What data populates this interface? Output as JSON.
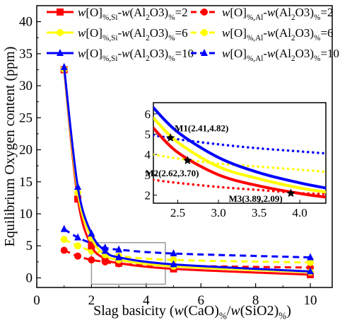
{
  "chart_data": {
    "type": "line",
    "title": "",
    "xlabel": "Slag basicity (w(CaO)%/w(SiO2)%)",
    "ylabel": "Equilibrium Oxygen content  (ppm)",
    "xlim": [
      0,
      10.8
    ],
    "ylim": [
      -1.5,
      42.5
    ],
    "x_ticks": [
      0,
      2,
      4,
      6,
      8,
      10
    ],
    "y_ticks": [
      0,
      5,
      10,
      15,
      20,
      25,
      30,
      35,
      40
    ],
    "grid": false,
    "legend_position": "top",
    "series": [
      {
        "name": "w[O]%,Si-w(Al2O3)%=2",
        "color": "#ff0000",
        "line": "solid",
        "marker": "square",
        "x": [
          1.0,
          1.5,
          2.0,
          2.5,
          3.0,
          5.0,
          10.0
        ],
        "y": [
          32.5,
          12.3,
          5.0,
          3.0,
          2.3,
          1.4,
          0.5
        ]
      },
      {
        "name": "w[O]%,Si-w(Al2O3)%=6",
        "color": "#ffff00",
        "line": "solid",
        "marker": "circle",
        "x": [
          1.0,
          1.5,
          2.0,
          2.5,
          3.0,
          5.0,
          10.0
        ],
        "y": [
          32.6,
          13.3,
          6.2,
          3.6,
          2.8,
          1.8,
          0.9
        ]
      },
      {
        "name": "w[O]%,Si-w(Al2O3)%=10",
        "color": "#0000ff",
        "line": "solid",
        "marker": "triangle",
        "x": [
          1.0,
          1.5,
          2.0,
          2.5,
          3.0,
          5.0,
          10.0
        ],
        "y": [
          32.9,
          14.2,
          6.9,
          4.2,
          3.2,
          2.1,
          1.0
        ]
      },
      {
        "name": "w[O]%,Al-w(Al2O3)%=2",
        "color": "#ff0000",
        "line": "dashed",
        "marker": "circle",
        "x": [
          1.0,
          1.5,
          2.0,
          2.5,
          3.0,
          5.0,
          10.0
        ],
        "y": [
          4.3,
          3.4,
          2.8,
          2.5,
          2.2,
          1.9,
          1.6
        ]
      },
      {
        "name": "w[O]%,Al-w(Al2O3)%=6",
        "color": "#ffff00",
        "line": "dashed",
        "marker": "circle",
        "x": [
          1.0,
          1.5,
          2.0,
          2.5,
          3.0,
          5.0,
          10.0
        ],
        "y": [
          6.0,
          5.0,
          4.2,
          3.8,
          3.4,
          2.8,
          2.4
        ]
      },
      {
        "name": "w[O]%,Al-w(Al2O3)%=10",
        "color": "#0000ff",
        "line": "dashed",
        "marker": "triangle",
        "x": [
          1.0,
          1.5,
          2.0,
          2.5,
          3.0,
          5.0,
          10.0
        ],
        "y": [
          7.6,
          6.3,
          5.4,
          4.7,
          4.4,
          3.8,
          3.2
        ]
      }
    ],
    "zoom_box": {
      "x": [
        2.0,
        4.7
      ],
      "y": [
        -1.0,
        5.5
      ]
    },
    "inset": {
      "xlim": [
        2.2,
        4.32
      ],
      "ylim": [
        1.6,
        6.55
      ],
      "x_ticks": [
        2.5,
        3.0,
        3.5,
        4.0
      ],
      "x_tick_labels": [
        "2.5",
        "3.0",
        "3.5",
        "4.0"
      ],
      "y_ticks": [
        2,
        3,
        4,
        5,
        6
      ],
      "series": [
        {
          "ref": 0,
          "color": "#ff0000",
          "line": "solid",
          "x": [
            2.2,
            2.5,
            3.0,
            3.5,
            4.0,
            4.32
          ],
          "y": [
            5.3,
            4.1,
            3.0,
            2.45,
            2.08,
            1.9
          ]
        },
        {
          "ref": 1,
          "color": "#ffff00",
          "line": "solid",
          "x": [
            2.2,
            2.5,
            3.0,
            3.5,
            4.0,
            4.32
          ],
          "y": [
            5.8,
            4.6,
            3.4,
            2.8,
            2.35,
            2.15
          ]
        },
        {
          "ref": 2,
          "color": "#0000ff",
          "line": "solid",
          "x": [
            2.2,
            2.5,
            3.0,
            3.5,
            4.0,
            4.32
          ],
          "y": [
            6.3,
            5.1,
            3.85,
            3.1,
            2.6,
            2.35
          ]
        },
        {
          "ref": 3,
          "color": "#ff0000",
          "line": "dotted",
          "x": [
            2.2,
            2.5,
            3.0,
            3.5,
            4.0,
            4.32
          ],
          "y": [
            2.75,
            2.6,
            2.4,
            2.25,
            2.1,
            2.05
          ]
        },
        {
          "ref": 4,
          "color": "#ffff00",
          "line": "dotted",
          "x": [
            2.2,
            2.5,
            3.0,
            3.5,
            4.0,
            4.32
          ],
          "y": [
            4.0,
            3.8,
            3.55,
            3.4,
            3.25,
            3.15
          ]
        },
        {
          "ref": 5,
          "color": "#0000ff",
          "line": "dotted",
          "x": [
            2.2,
            2.5,
            3.0,
            3.5,
            4.0,
            4.32
          ],
          "y": [
            4.95,
            4.75,
            4.5,
            4.3,
            4.15,
            4.05
          ]
        }
      ],
      "annotations": [
        {
          "label": "M1(2.41,4.82)",
          "x": 2.41,
          "y": 4.82
        },
        {
          "label": "M2(2.62,3.70)",
          "x": 2.62,
          "y": 3.7
        },
        {
          "label": "M3(3.89,2.09)",
          "x": 3.89,
          "y": 2.09
        }
      ]
    }
  }
}
